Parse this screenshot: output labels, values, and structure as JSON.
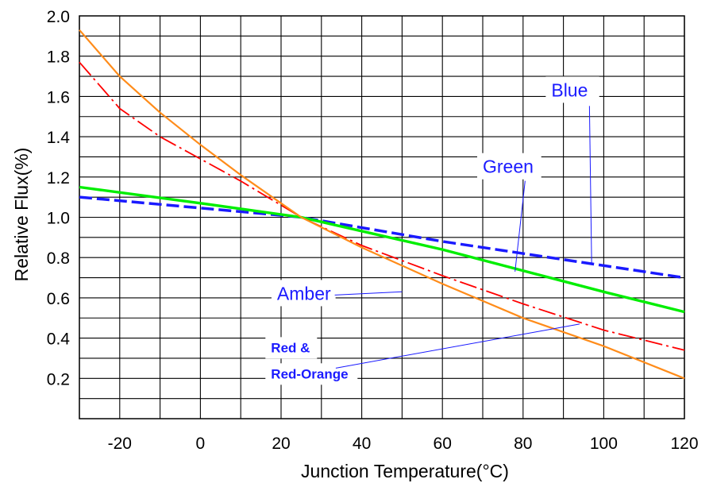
{
  "chart_data": {
    "type": "line",
    "xlabel": "Junction Temperature(°C)",
    "ylabel": "Relative Flux(%)",
    "xlim": [
      -30,
      120
    ],
    "ylim": [
      0,
      2.0
    ],
    "grid": true,
    "x_tick_labels": [
      "-20",
      "0",
      "20",
      "40",
      "60",
      "80",
      "100",
      "120"
    ],
    "y_tick_labels": [
      "0.2",
      "0.4",
      "0.6",
      "0.8",
      "1.0",
      "1.2",
      "1.4",
      "1.6",
      "1.8",
      "2.0"
    ],
    "series": [
      {
        "name": "Blue",
        "color": "#1a1aff",
        "style": "dashed",
        "x": [
          -30,
          20,
          25,
          60,
          100,
          120
        ],
        "y": [
          1.1,
          1.01,
          1.0,
          0.88,
          0.76,
          0.7
        ]
      },
      {
        "name": "Green",
        "color": "#00ee00",
        "style": "solid",
        "x": [
          -30,
          0,
          25,
          60,
          100,
          120
        ],
        "y": [
          1.15,
          1.07,
          1.0,
          0.84,
          0.63,
          0.53
        ]
      },
      {
        "name": "Red & Red-Orange",
        "color": "#ff0000",
        "style": "dashdot",
        "x": [
          -30,
          -20,
          -10,
          0,
          10,
          20,
          25,
          40,
          60,
          80,
          100,
          120
        ],
        "y": [
          1.77,
          1.54,
          1.4,
          1.29,
          1.18,
          1.06,
          1.0,
          0.86,
          0.71,
          0.57,
          0.44,
          0.34
        ]
      },
      {
        "name": "Amber",
        "color": "#ff8c1a",
        "style": "solid",
        "x": [
          -30,
          -20,
          -10,
          0,
          10,
          20,
          25,
          40,
          60,
          80,
          100,
          120
        ],
        "y": [
          1.93,
          1.7,
          1.52,
          1.36,
          1.21,
          1.07,
          1.0,
          0.85,
          0.67,
          0.5,
          0.36,
          0.2
        ]
      }
    ],
    "annotations": [
      {
        "text": "Blue",
        "x": 87.0,
        "y": 1.6,
        "target_x": 97.0,
        "target_y": 0.77,
        "size": "large"
      },
      {
        "text": "Green",
        "x": 70.0,
        "y": 1.22,
        "target_x": 78.0,
        "target_y": 0.73,
        "size": "large"
      },
      {
        "text": "Amber",
        "x": 19.0,
        "y": 0.59,
        "target_x": 50.0,
        "target_y": 0.63,
        "size": "large"
      },
      {
        "text": "Red &",
        "x": 17.5,
        "y": 0.33,
        "target_x": 94.0,
        "target_y": 0.47,
        "size": "small"
      },
      {
        "text": "Red-Orange",
        "x": 17.5,
        "y": 0.2,
        "target_x": 94.0,
        "target_y": 0.47,
        "size": "small"
      }
    ]
  }
}
